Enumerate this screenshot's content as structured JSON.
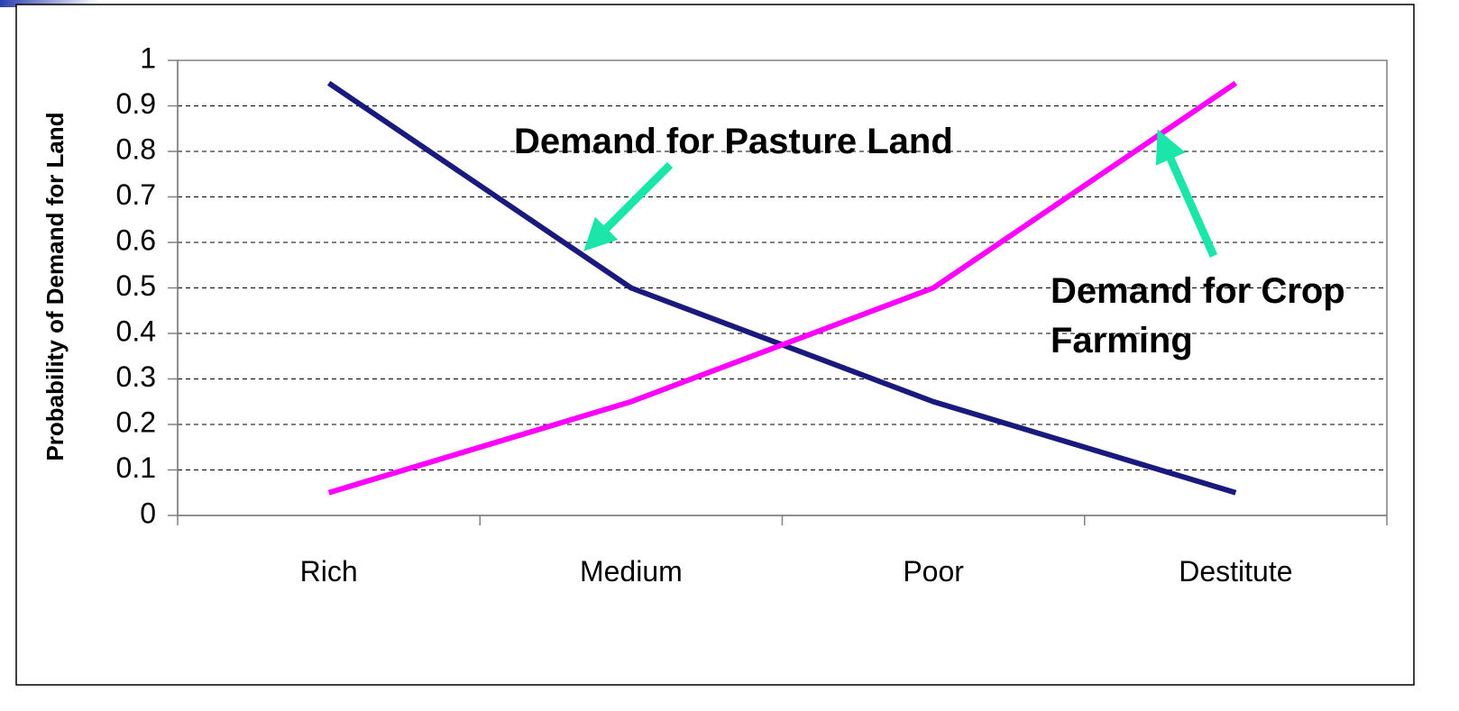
{
  "chart_data": {
    "type": "line",
    "y_label": "Probability of Demand for Land",
    "categories": [
      "Rich",
      "Medium",
      "Poor",
      "Destitute"
    ],
    "series": [
      {
        "color": "#1a1a7e",
        "values": [
          0.95,
          0.5,
          0.25,
          0.05
        ]
      },
      {
        "color": "#ff00ff",
        "values": [
          0.05,
          0.25,
          0.5,
          0.95
        ]
      }
    ],
    "annotations": [
      "Demand for Pasture Land",
      "Demand for Crop",
      "Farming"
    ],
    "ylim": [
      0,
      1
    ],
    "yticks": [
      0,
      0.1,
      0.2,
      0.3,
      0.4,
      0.5,
      0.6,
      0.7,
      0.8,
      0.9,
      1
    ],
    "grid": true
  }
}
